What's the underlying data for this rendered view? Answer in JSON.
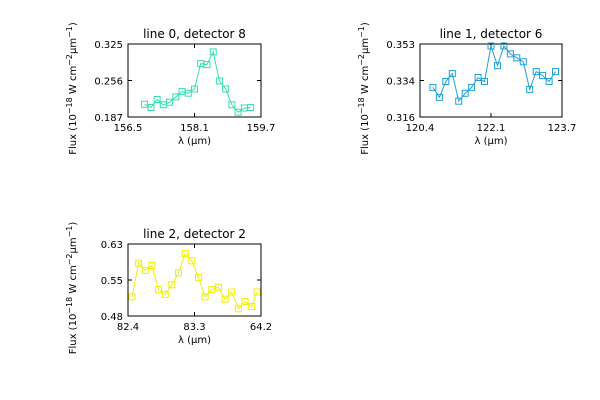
{
  "chart_data": [
    {
      "type": "line",
      "title": "line 0, detector 8",
      "xlabel": "λ (μm)",
      "ylabel": "Flux (10^-18 W cm^-2 μm^-1)",
      "xlim": [
        156.5,
        159.7
      ],
      "ylim": [
        0.187,
        0.325
      ],
      "xticks": [
        "156.5",
        "158.1",
        "159.7"
      ],
      "yticks": [
        "0.187",
        "0.256",
        "0.325"
      ],
      "color": "#33e0b0",
      "series": [
        {
          "x": [
            156.9,
            157.05,
            157.2,
            157.35,
            157.5,
            157.65,
            157.8,
            157.95,
            158.1,
            158.25,
            158.4,
            158.55,
            158.7,
            158.85,
            159.0,
            159.15,
            159.3,
            159.45
          ],
          "y": [
            0.211,
            0.205,
            0.22,
            0.21,
            0.215,
            0.225,
            0.235,
            0.232,
            0.24,
            0.288,
            0.286,
            0.31,
            0.255,
            0.24,
            0.21,
            0.196,
            0.204,
            0.205
          ]
        }
      ]
    },
    {
      "type": "line",
      "title": "line 1, detector 6",
      "xlabel": "λ (μm)",
      "ylabel": "Flux (10^-18 W cm^-2 μm^-1)",
      "xlim": [
        120.4,
        123.7
      ],
      "ylim": [
        0.316,
        0.353
      ],
      "xticks": [
        "120.4",
        "122.1",
        "123.7"
      ],
      "yticks": [
        "0.316",
        "0.334",
        "0.353"
      ],
      "color": "#1fa0d8",
      "series": [
        {
          "x": [
            120.7,
            120.85,
            121.0,
            121.15,
            121.3,
            121.45,
            121.6,
            121.75,
            121.9,
            122.05,
            122.2,
            122.35,
            122.5,
            122.65,
            122.8,
            122.95,
            123.1,
            123.25,
            123.4,
            123.55
          ],
          "y": [
            0.331,
            0.326,
            0.334,
            0.338,
            0.324,
            0.328,
            0.331,
            0.336,
            0.334,
            0.352,
            0.342,
            0.352,
            0.348,
            0.346,
            0.344,
            0.33,
            0.339,
            0.337,
            0.334,
            0.339
          ]
        }
      ]
    },
    {
      "type": "line",
      "title": "line 2, detector 2",
      "xlabel": "λ (μm)",
      "ylabel": "Flux (10^-18 W cm^-2 μm^-1)",
      "xlim": [
        82.4,
        64.2
      ],
      "ylim": [
        0.48,
        0.63
      ],
      "xticks": [
        "82.4",
        "83.3",
        "64.2"
      ],
      "yticks": [
        "0.48",
        "0.55",
        "0.63"
      ],
      "color": "#f0f000",
      "series": [
        {
          "x": [
            0.03,
            0.08,
            0.13,
            0.18,
            0.23,
            0.28,
            0.33,
            0.38,
            0.43,
            0.48,
            0.53,
            0.58,
            0.63,
            0.68,
            0.73,
            0.78,
            0.83,
            0.88,
            0.93,
            0.97
          ],
          "y": [
            0.52,
            0.59,
            0.575,
            0.585,
            0.535,
            0.525,
            0.545,
            0.57,
            0.61,
            0.595,
            0.56,
            0.52,
            0.535,
            0.54,
            0.515,
            0.53,
            0.495,
            0.51,
            0.5,
            0.53
          ]
        }
      ]
    }
  ]
}
